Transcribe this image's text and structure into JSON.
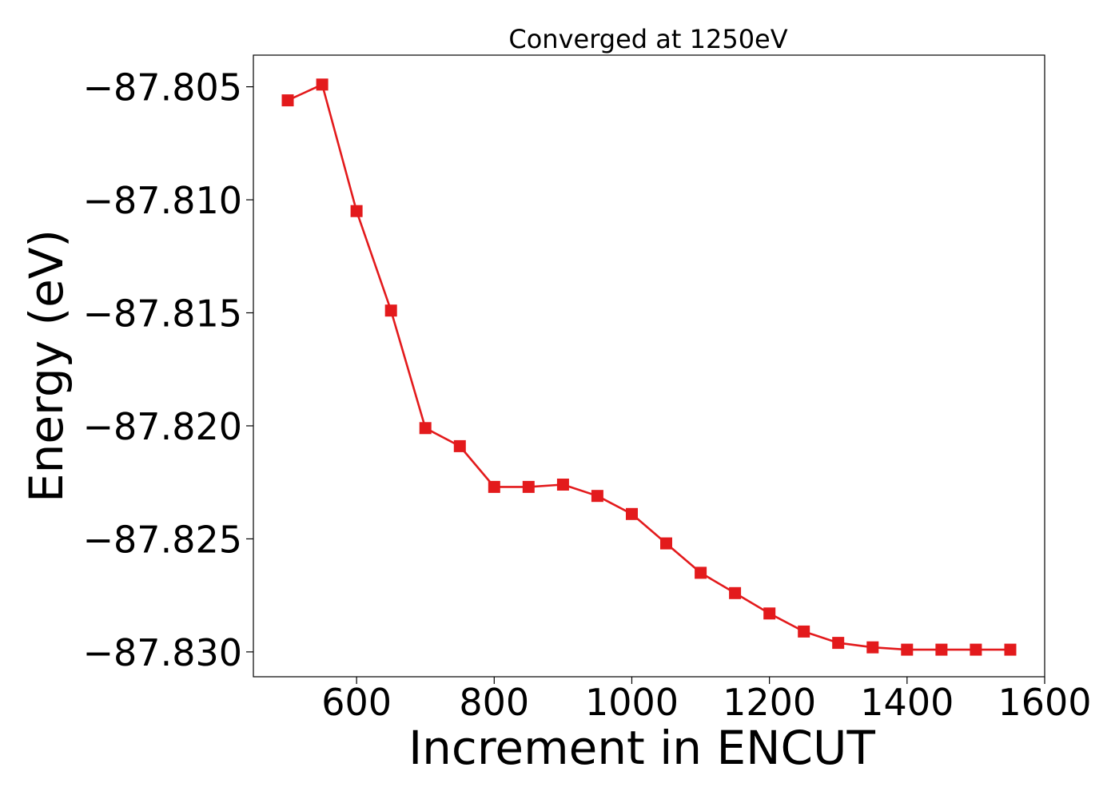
{
  "chart_data": {
    "type": "line",
    "title": "Converged at 1250eV",
    "xlabel": "Increment in ENCUT",
    "ylabel": "Energy (eV)",
    "xlim": [
      450,
      1600
    ],
    "ylim": [
      -87.8311,
      -87.8036
    ],
    "x_ticks": [
      600,
      800,
      1000,
      1200,
      1400,
      1600
    ],
    "y_ticks": [
      -87.805,
      -87.81,
      -87.815,
      -87.82,
      -87.825,
      -87.83
    ],
    "x_tick_labels": [
      "600",
      "800",
      "1000",
      "1200",
      "1400",
      "1600"
    ],
    "y_tick_labels": [
      "−87.805",
      "−87.810",
      "−87.815",
      "−87.820",
      "−87.825",
      "−87.830"
    ],
    "grid": false,
    "legend": "none",
    "series": [
      {
        "color": "#e31a1c",
        "marker": "square",
        "x": [
          500,
          550,
          600,
          650,
          700,
          750,
          800,
          850,
          900,
          950,
          1000,
          1050,
          1100,
          1150,
          1200,
          1250,
          1300,
          1350,
          1400,
          1450,
          1500,
          1550
        ],
        "y": [
          -87.8056,
          -87.8049,
          -87.8105,
          -87.8149,
          -87.8201,
          -87.8209,
          -87.8227,
          -87.8227,
          -87.8226,
          -87.8231,
          -87.8239,
          -87.8252,
          -87.8265,
          -87.8274,
          -87.8283,
          -87.8291,
          -87.8296,
          -87.8298,
          -87.8299,
          -87.8299,
          -87.8299,
          -87.8299
        ]
      }
    ]
  }
}
